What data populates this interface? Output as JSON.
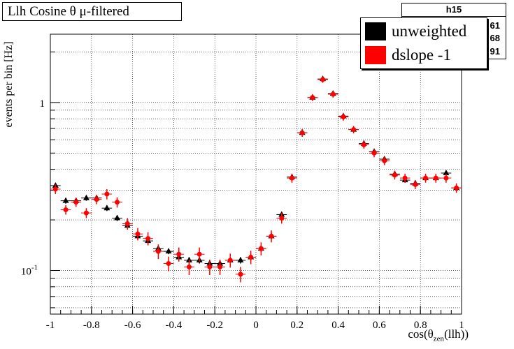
{
  "chart_data": {
    "type": "scatter",
    "title": "Llh Cosine θ μ-filtered",
    "xlabel": {
      "prefix": "cos(θ",
      "subscript": "zen",
      "suffix": "(llh))"
    },
    "ylabel": "events per bin [Hz]",
    "xlim": [
      -1,
      1
    ],
    "ylim": [
      0.055,
      2.55
    ],
    "yscale": "log",
    "grid": true,
    "x_ticks": [
      "-1",
      "-0.8",
      "-0.6",
      "-0.4",
      "-0.2",
      "0",
      "0.2",
      "0.4",
      "0.6",
      "0.8",
      "1"
    ],
    "y_ticks": [
      {
        "value": 0.1,
        "base": "10",
        "exp": "-1"
      },
      {
        "value": 1,
        "label": "1"
      }
    ],
    "x": [
      -0.975,
      -0.925,
      -0.875,
      -0.825,
      -0.775,
      -0.725,
      -0.675,
      -0.625,
      -0.575,
      -0.525,
      -0.475,
      -0.425,
      -0.375,
      -0.325,
      -0.275,
      -0.225,
      -0.175,
      -0.125,
      -0.075,
      -0.025,
      0.025,
      0.075,
      0.125,
      0.175,
      0.225,
      0.275,
      0.325,
      0.375,
      0.425,
      0.475,
      0.525,
      0.575,
      0.625,
      0.675,
      0.725,
      0.775,
      0.825,
      0.875,
      0.925,
      0.975
    ],
    "series": [
      {
        "name": "unweighted",
        "color": "#000000",
        "marker": "triangle",
        "values": [
          0.32,
          0.26,
          0.26,
          0.27,
          0.27,
          0.235,
          0.205,
          0.185,
          0.16,
          0.15,
          0.135,
          0.13,
          0.12,
          0.115,
          0.115,
          0.11,
          0.11,
          0.115,
          0.115,
          0.12,
          0.135,
          0.16,
          0.215,
          0.36,
          0.66,
          1.07,
          1.38,
          1.13,
          0.83,
          0.69,
          0.57,
          0.51,
          0.46,
          0.375,
          0.345,
          0.33,
          0.355,
          0.355,
          0.38,
          0.31
        ],
        "errors": [
          0.012,
          0.01,
          0.01,
          0.01,
          0.01,
          0.009,
          0.008,
          0.007,
          0.006,
          0.006,
          0.006,
          0.005,
          0.005,
          0.005,
          0.005,
          0.005,
          0.005,
          0.005,
          0.005,
          0.005,
          0.006,
          0.006,
          0.008,
          0.012,
          0.018,
          0.025,
          0.03,
          0.025,
          0.02,
          0.018,
          0.016,
          0.015,
          0.014,
          0.012,
          0.012,
          0.011,
          0.012,
          0.012,
          0.012,
          0.011
        ]
      },
      {
        "name": "dslope -1",
        "color": "#ff0000",
        "marker": "circle",
        "values": [
          0.305,
          0.23,
          0.255,
          0.22,
          0.265,
          0.285,
          0.255,
          0.19,
          0.165,
          0.155,
          0.13,
          0.11,
          0.125,
          0.105,
          0.125,
          0.105,
          0.105,
          0.115,
          0.095,
          0.12,
          0.135,
          0.16,
          0.205,
          0.355,
          0.66,
          1.07,
          1.37,
          1.12,
          0.82,
          0.69,
          0.56,
          0.5,
          0.45,
          0.37,
          0.355,
          0.325,
          0.355,
          0.355,
          0.355,
          0.31
        ],
        "errors": [
          0.02,
          0.015,
          0.016,
          0.015,
          0.017,
          0.02,
          0.018,
          0.015,
          0.014,
          0.014,
          0.013,
          0.011,
          0.012,
          0.011,
          0.012,
          0.011,
          0.011,
          0.011,
          0.01,
          0.011,
          0.012,
          0.013,
          0.015,
          0.022,
          0.035,
          0.05,
          0.06,
          0.05,
          0.04,
          0.035,
          0.03,
          0.028,
          0.026,
          0.022,
          0.022,
          0.02,
          0.022,
          0.022,
          0.022,
          0.02
        ]
      }
    ]
  },
  "stats_box": {
    "title": "h15",
    "partial_digits": [
      "61",
      "68",
      "91"
    ]
  },
  "legend": {
    "entries": [
      {
        "label": "unweighted",
        "color": "#000000"
      },
      {
        "label": "dslope -1",
        "color": "#ff0000"
      }
    ]
  }
}
